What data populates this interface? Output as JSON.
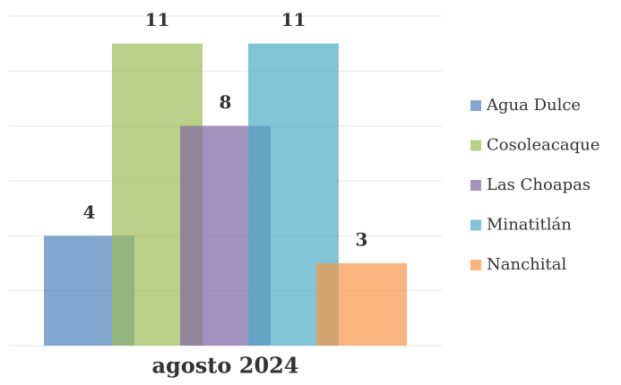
{
  "chart_data": {
    "type": "bar",
    "categories": [
      "agosto 2024"
    ],
    "series": [
      {
        "name": "Agua Dulce",
        "color": "#4f81bd",
        "values": [
          4
        ]
      },
      {
        "name": "Cosoleacaque",
        "color": "#9bbb59",
        "values": [
          11
        ]
      },
      {
        "name": "Las Choapas",
        "color": "#8064a2",
        "values": [
          8
        ]
      },
      {
        "name": "Minatitlán",
        "color": "#4bacc6",
        "values": [
          11
        ]
      },
      {
        "name": "Nanchital",
        "color": "#f79646",
        "values": [
          3
        ]
      }
    ],
    "ylim": [
      0,
      12
    ],
    "yticks": [
      0,
      2,
      4,
      6,
      8,
      10,
      12
    ],
    "grid": true,
    "legend": "right"
  }
}
